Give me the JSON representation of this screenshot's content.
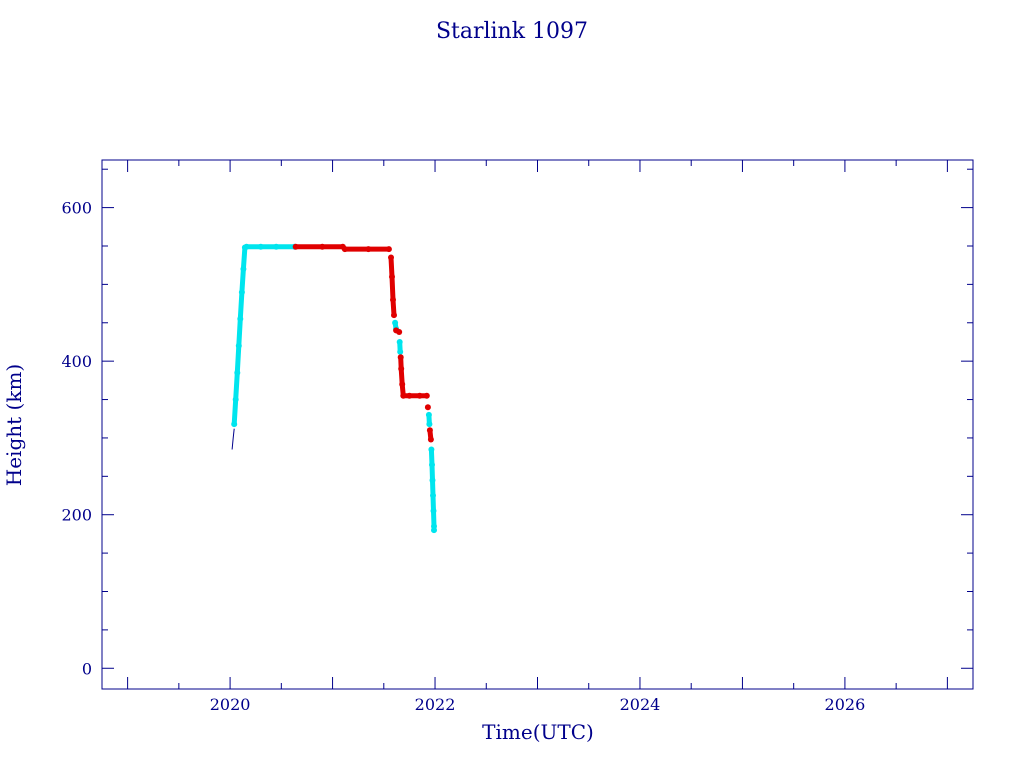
{
  "chart_data": {
    "type": "line",
    "title": "Starlink 1097",
    "xlabel": "Time(UTC)",
    "ylabel": "Height (km)",
    "xlim": [
      2018.75,
      2027.25
    ],
    "ylim": [
      -27,
      662
    ],
    "x_ticks": [
      {
        "value": 2020,
        "label": "2020"
      },
      {
        "value": 2022,
        "label": "2022"
      },
      {
        "value": 2024,
        "label": "2024"
      },
      {
        "value": 2026,
        "label": "2026"
      }
    ],
    "y_ticks": [
      {
        "value": 0,
        "label": "0"
      },
      {
        "value": 200,
        "label": "200"
      },
      {
        "value": 400,
        "label": "400"
      },
      {
        "value": 600,
        "label": "600"
      }
    ],
    "grid": false,
    "colors": {
      "axis": "#00008b",
      "trace": "#00008b",
      "segment_a": "#00e5ee",
      "segment_b": "#e00000"
    },
    "trace": [
      {
        "x": 2020.02,
        "y": 285
      },
      {
        "x": 2020.03,
        "y": 300
      },
      {
        "x": 2020.04,
        "y": 312
      }
    ],
    "series": [
      {
        "color": "cyan",
        "points": [
          {
            "x": 2020.04,
            "y": 318
          },
          {
            "x": 2020.055,
            "y": 350
          },
          {
            "x": 2020.07,
            "y": 385
          },
          {
            "x": 2020.085,
            "y": 420
          },
          {
            "x": 2020.1,
            "y": 455
          },
          {
            "x": 2020.115,
            "y": 490
          },
          {
            "x": 2020.13,
            "y": 520
          },
          {
            "x": 2020.145,
            "y": 548
          },
          {
            "x": 2020.16,
            "y": 549
          },
          {
            "x": 2020.3,
            "y": 549
          },
          {
            "x": 2020.45,
            "y": 549
          },
          {
            "x": 2020.63,
            "y": 549
          }
        ]
      },
      {
        "color": "red",
        "points": [
          {
            "x": 2020.64,
            "y": 549
          },
          {
            "x": 2020.9,
            "y": 549
          },
          {
            "x": 2021.1,
            "y": 549
          },
          {
            "x": 2021.12,
            "y": 546
          },
          {
            "x": 2021.35,
            "y": 546
          },
          {
            "x": 2021.55,
            "y": 546
          }
        ]
      },
      {
        "color": "red",
        "points": [
          {
            "x": 2021.57,
            "y": 535
          },
          {
            "x": 2021.58,
            "y": 510
          },
          {
            "x": 2021.59,
            "y": 480
          },
          {
            "x": 2021.6,
            "y": 460
          }
        ]
      },
      {
        "color": "cyan",
        "points": [
          {
            "x": 2021.61,
            "y": 450
          },
          {
            "x": 2021.62,
            "y": 442
          }
        ]
      },
      {
        "color": "red",
        "points": [
          {
            "x": 2021.62,
            "y": 440
          },
          {
            "x": 2021.65,
            "y": 438
          }
        ]
      },
      {
        "color": "cyan",
        "points": [
          {
            "x": 2021.655,
            "y": 425
          },
          {
            "x": 2021.66,
            "y": 412
          }
        ]
      },
      {
        "color": "red",
        "points": [
          {
            "x": 2021.665,
            "y": 405
          },
          {
            "x": 2021.67,
            "y": 390
          },
          {
            "x": 2021.68,
            "y": 370
          },
          {
            "x": 2021.69,
            "y": 355
          },
          {
            "x": 2021.75,
            "y": 355
          },
          {
            "x": 2021.85,
            "y": 355
          },
          {
            "x": 2021.92,
            "y": 355
          }
        ]
      },
      {
        "color": "red",
        "points": [
          {
            "x": 2021.93,
            "y": 340
          }
        ]
      },
      {
        "color": "cyan",
        "points": [
          {
            "x": 2021.94,
            "y": 330
          },
          {
            "x": 2021.945,
            "y": 318
          }
        ]
      },
      {
        "color": "red",
        "points": [
          {
            "x": 2021.95,
            "y": 310
          },
          {
            "x": 2021.96,
            "y": 298
          }
        ]
      },
      {
        "color": "cyan",
        "points": [
          {
            "x": 2021.965,
            "y": 285
          },
          {
            "x": 2021.97,
            "y": 265
          },
          {
            "x": 2021.975,
            "y": 245
          },
          {
            "x": 2021.98,
            "y": 225
          },
          {
            "x": 2021.985,
            "y": 205
          },
          {
            "x": 2021.99,
            "y": 185
          },
          {
            "x": 2021.99,
            "y": 180
          }
        ]
      }
    ]
  }
}
